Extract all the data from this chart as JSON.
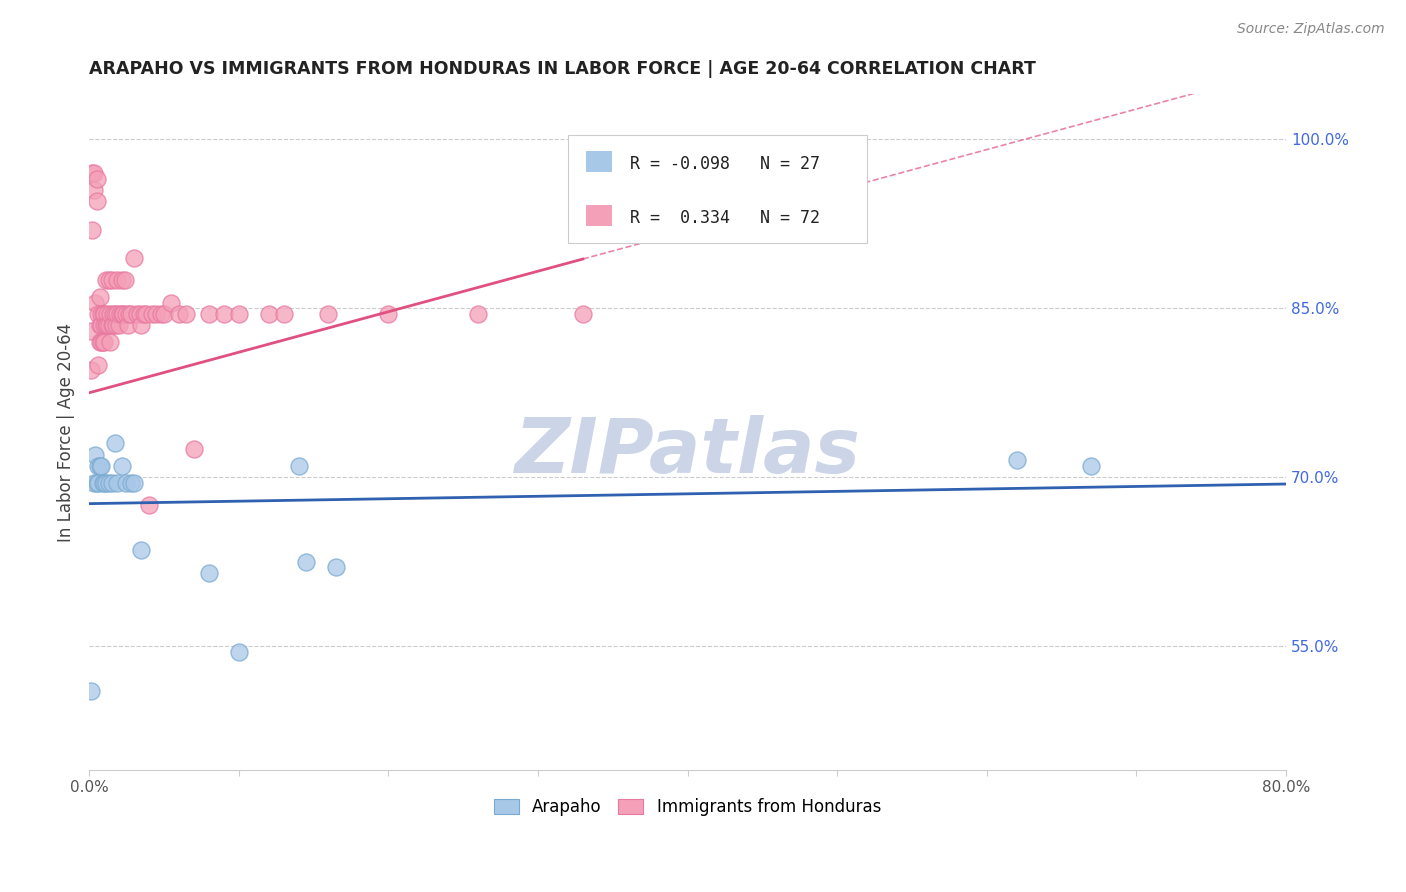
{
  "title": "ARAPAHO VS IMMIGRANTS FROM HONDURAS IN LABOR FORCE | AGE 20-64 CORRELATION CHART",
  "source": "Source: ZipAtlas.com",
  "ylabel": "In Labor Force | Age 20-64",
  "xlim": [
    0.0,
    0.8
  ],
  "ylim": [
    0.44,
    1.04
  ],
  "xticks": [
    0.0,
    0.1,
    0.2,
    0.3,
    0.4,
    0.5,
    0.6,
    0.7,
    0.8
  ],
  "xticklabels": [
    "0.0%",
    "",
    "",
    "",
    "",
    "",
    "",
    "",
    "80.0%"
  ],
  "yticks_right": [
    0.55,
    0.7,
    0.85,
    1.0
  ],
  "yticklabels_right": [
    "55.0%",
    "70.0%",
    "85.0%",
    "100.0%"
  ],
  "arapaho_color": "#a8c8e8",
  "honduras_color": "#f4a0b8",
  "arapaho_edge_color": "#7aaad0",
  "honduras_edge_color": "#e878a0",
  "arapaho_line_color": "#3060b0",
  "honduras_line_color": "#e05080",
  "watermark": "ZIPatlas",
  "watermark_color": "#ccd5e8",
  "arapaho_x": [
    0.001,
    0.003,
    0.004,
    0.005,
    0.006,
    0.006,
    0.007,
    0.008,
    0.009,
    0.01,
    0.011,
    0.013,
    0.015,
    0.017,
    0.019,
    0.022,
    0.025,
    0.028,
    0.03,
    0.035,
    0.08,
    0.1,
    0.14,
    0.145,
    0.165,
    0.62,
    0.67
  ],
  "arapaho_y": [
    0.51,
    0.695,
    0.72,
    0.695,
    0.71,
    0.695,
    0.71,
    0.71,
    0.695,
    0.695,
    0.695,
    0.695,
    0.695,
    0.73,
    0.695,
    0.71,
    0.695,
    0.695,
    0.695,
    0.635,
    0.615,
    0.545,
    0.71,
    0.625,
    0.62,
    0.715,
    0.71
  ],
  "honduras_x": [
    0.001,
    0.001,
    0.002,
    0.002,
    0.003,
    0.003,
    0.004,
    0.005,
    0.005,
    0.006,
    0.006,
    0.007,
    0.007,
    0.007,
    0.008,
    0.008,
    0.008,
    0.009,
    0.009,
    0.01,
    0.01,
    0.01,
    0.011,
    0.011,
    0.012,
    0.012,
    0.013,
    0.013,
    0.014,
    0.014,
    0.015,
    0.015,
    0.016,
    0.016,
    0.017,
    0.018,
    0.019,
    0.019,
    0.02,
    0.021,
    0.022,
    0.022,
    0.023,
    0.024,
    0.025,
    0.026,
    0.027,
    0.028,
    0.03,
    0.032,
    0.034,
    0.035,
    0.037,
    0.038,
    0.04,
    0.042,
    0.045,
    0.048,
    0.05,
    0.055,
    0.06,
    0.065,
    0.07,
    0.08,
    0.09,
    0.1,
    0.12,
    0.13,
    0.16,
    0.2,
    0.26,
    0.33
  ],
  "honduras_y": [
    0.795,
    0.83,
    0.97,
    0.92,
    0.97,
    0.955,
    0.855,
    0.965,
    0.945,
    0.8,
    0.845,
    0.86,
    0.835,
    0.82,
    0.845,
    0.835,
    0.82,
    0.845,
    0.82,
    0.845,
    0.835,
    0.82,
    0.835,
    0.875,
    0.845,
    0.835,
    0.835,
    0.875,
    0.845,
    0.82,
    0.875,
    0.835,
    0.845,
    0.835,
    0.845,
    0.835,
    0.845,
    0.875,
    0.835,
    0.845,
    0.845,
    0.875,
    0.845,
    0.875,
    0.845,
    0.835,
    0.845,
    0.845,
    0.895,
    0.845,
    0.845,
    0.835,
    0.845,
    0.845,
    0.675,
    0.845,
    0.845,
    0.845,
    0.845,
    0.855,
    0.845,
    0.845,
    0.725,
    0.845,
    0.845,
    0.845,
    0.845,
    0.845,
    0.845,
    0.845,
    0.845,
    0.845
  ]
}
